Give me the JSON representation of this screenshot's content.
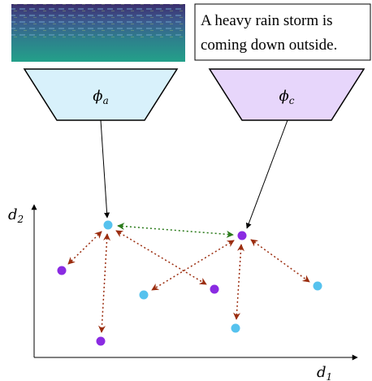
{
  "caption": {
    "lines": [
      "A heavy rain storm is",
      "coming down outside."
    ]
  },
  "encoders": [
    {
      "symbol": "ϕ",
      "subscript": "a"
    },
    {
      "symbol": "ϕ",
      "subscript": "c"
    }
  ],
  "axes": {
    "y": {
      "symbol": "d",
      "subscript": "2"
    },
    "x": {
      "symbol": "d",
      "subscript": "1"
    }
  }
}
